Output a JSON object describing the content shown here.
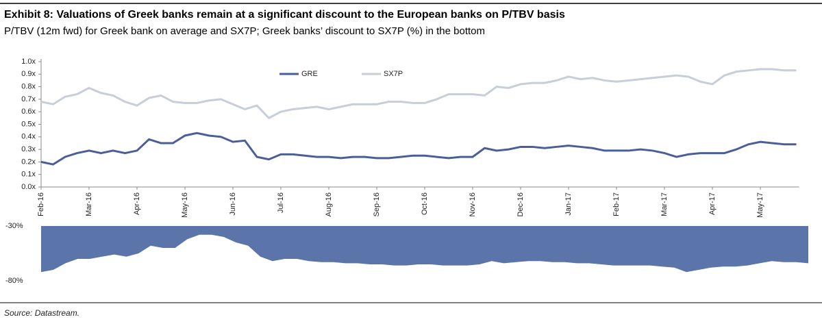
{
  "title": "Exhibit 8: Valuations of Greek banks remain at a significant discount to the European banks on P/TBV basis",
  "subtitle": "P/TBV (12m fwd) for Greek bank on average and SX7P; Greek banks’ discount to SX7P (%) in the bottom",
  "source": "Source: Datastream.",
  "chart_data": [
    {
      "type": "line",
      "categories": [
        "Feb-16",
        null,
        null,
        null,
        "Mar-16",
        null,
        null,
        null,
        "Apr-16",
        null,
        null,
        null,
        "May-16",
        null,
        null,
        null,
        "Jun-16",
        null,
        null,
        null,
        "Jul-16",
        null,
        null,
        null,
        "Aug-16",
        null,
        null,
        null,
        "Sep-16",
        null,
        null,
        null,
        "Oct-16",
        null,
        null,
        null,
        "Nov-16",
        null,
        null,
        null,
        "Dec-16",
        null,
        null,
        null,
        "Jan-17",
        null,
        null,
        null,
        "Feb-17",
        null,
        null,
        null,
        "Mar-17",
        null,
        null,
        null,
        "Apr-17",
        null,
        null,
        null,
        "May-17",
        null,
        null,
        null
      ],
      "series": [
        {
          "name": "GRE",
          "color": "#4a5f99",
          "values": [
            0.2,
            0.18,
            0.24,
            0.27,
            0.29,
            0.27,
            0.29,
            0.27,
            0.29,
            0.38,
            0.35,
            0.35,
            0.41,
            0.43,
            0.41,
            0.4,
            0.36,
            0.37,
            0.24,
            0.22,
            0.26,
            0.26,
            0.25,
            0.24,
            0.24,
            0.23,
            0.24,
            0.24,
            0.23,
            0.23,
            0.24,
            0.25,
            0.25,
            0.24,
            0.23,
            0.24,
            0.24,
            0.31,
            0.29,
            0.3,
            0.32,
            0.32,
            0.31,
            0.32,
            0.33,
            0.32,
            0.31,
            0.29,
            0.29,
            0.29,
            0.3,
            0.29,
            0.27,
            0.24,
            0.26,
            0.27,
            0.27,
            0.27,
            0.3,
            0.34,
            0.36,
            0.35,
            0.34,
            0.34
          ]
        },
        {
          "name": "SX7P",
          "color": "#c8ced8",
          "values": [
            0.68,
            0.66,
            0.72,
            0.74,
            0.79,
            0.75,
            0.73,
            0.68,
            0.65,
            0.71,
            0.73,
            0.68,
            0.67,
            0.67,
            0.69,
            0.7,
            0.66,
            0.62,
            0.65,
            0.55,
            0.6,
            0.62,
            0.63,
            0.64,
            0.62,
            0.64,
            0.66,
            0.66,
            0.66,
            0.68,
            0.68,
            0.67,
            0.67,
            0.7,
            0.74,
            0.74,
            0.74,
            0.73,
            0.8,
            0.79,
            0.82,
            0.83,
            0.83,
            0.85,
            0.88,
            0.86,
            0.87,
            0.85,
            0.84,
            0.85,
            0.86,
            0.87,
            0.88,
            0.89,
            0.88,
            0.84,
            0.82,
            0.89,
            0.92,
            0.93,
            0.94,
            0.94,
            0.93,
            0.93
          ]
        }
      ],
      "ylim": [
        0,
        1
      ],
      "yticks": [
        {
          "value": 0,
          "label": "0.0x"
        },
        {
          "value": 0.1,
          "label": "0.1x"
        },
        {
          "value": 0.2,
          "label": "0.2x"
        },
        {
          "value": 0.3,
          "label": "0.3x"
        },
        {
          "value": 0.4,
          "label": "0.4x"
        },
        {
          "value": 0.5,
          "label": "0.5x"
        },
        {
          "value": 0.6,
          "label": "0.6x"
        },
        {
          "value": 0.7,
          "label": "0.7x"
        },
        {
          "value": 0.8,
          "label": "0.8x"
        },
        {
          "value": 0.9,
          "label": "0.9x"
        },
        {
          "value": 1,
          "label": "1.0x"
        }
      ],
      "legend": "top"
    },
    {
      "type": "area",
      "color": "#5b74aa",
      "values": [
        -72,
        -70,
        -64,
        -60,
        -60,
        -58,
        -56,
        -58,
        -55,
        -48,
        -50,
        -50,
        -42,
        -38,
        -38,
        -40,
        -45,
        -48,
        -58,
        -62,
        -60,
        -60,
        -62,
        -63,
        -63,
        -64,
        -64,
        -65,
        -65,
        -66,
        -66,
        -65,
        -65,
        -66,
        -66,
        -66,
        -65,
        -62,
        -64,
        -63,
        -62,
        -62,
        -63,
        -63,
        -64,
        -64,
        -65,
        -66,
        -66,
        -66,
        -66,
        -67,
        -68,
        -72,
        -70,
        -68,
        -67,
        -67,
        -66,
        -64,
        -62,
        -63,
        -63,
        -64
      ],
      "ylim": [
        -80,
        -30
      ],
      "yticks": [
        {
          "value": -30,
          "label": "-30%"
        },
        {
          "value": -80,
          "label": "-80%"
        }
      ]
    }
  ]
}
